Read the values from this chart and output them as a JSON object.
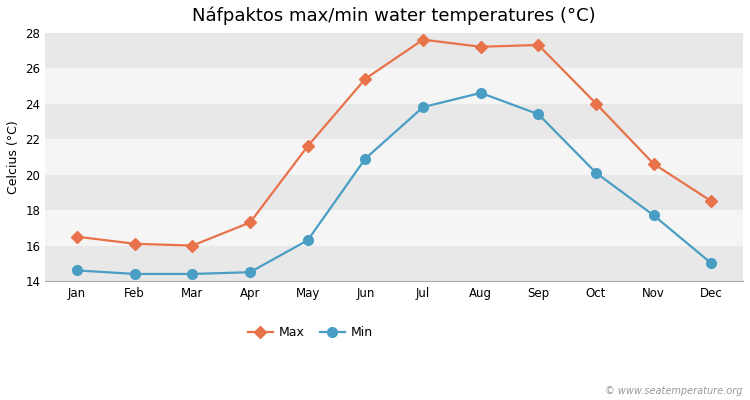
{
  "months": [
    "Jan",
    "Feb",
    "Mar",
    "Apr",
    "May",
    "Jun",
    "Jul",
    "Aug",
    "Sep",
    "Oct",
    "Nov",
    "Dec"
  ],
  "max_temps": [
    16.5,
    16.1,
    16.0,
    17.3,
    21.6,
    25.4,
    27.6,
    27.2,
    27.3,
    24.0,
    20.6,
    18.5
  ],
  "min_temps": [
    14.6,
    14.4,
    14.4,
    14.5,
    16.3,
    20.9,
    23.8,
    24.6,
    23.4,
    20.1,
    17.7,
    15.0
  ],
  "max_color": "#e8724a",
  "min_color": "#4a9ec4",
  "title": "Náfpaktos max/min water temperatures (°C)",
  "ylabel": "Celcius (°C)",
  "ylim": [
    14,
    28
  ],
  "yticks": [
    14,
    16,
    18,
    20,
    22,
    24,
    26,
    28
  ],
  "fig_bg_color": "#ffffff",
  "band_light": "#e8e8e8",
  "band_dark": "#f5f5f5",
  "legend_max": "Max",
  "legend_min": "Min",
  "watermark": "© www.seatemperature.org",
  "title_fontsize": 13,
  "axis_label_fontsize": 9,
  "tick_fontsize": 8.5,
  "legend_fontsize": 9,
  "marker_size_max": 6,
  "marker_size_min": 7,
  "line_width": 1.6
}
